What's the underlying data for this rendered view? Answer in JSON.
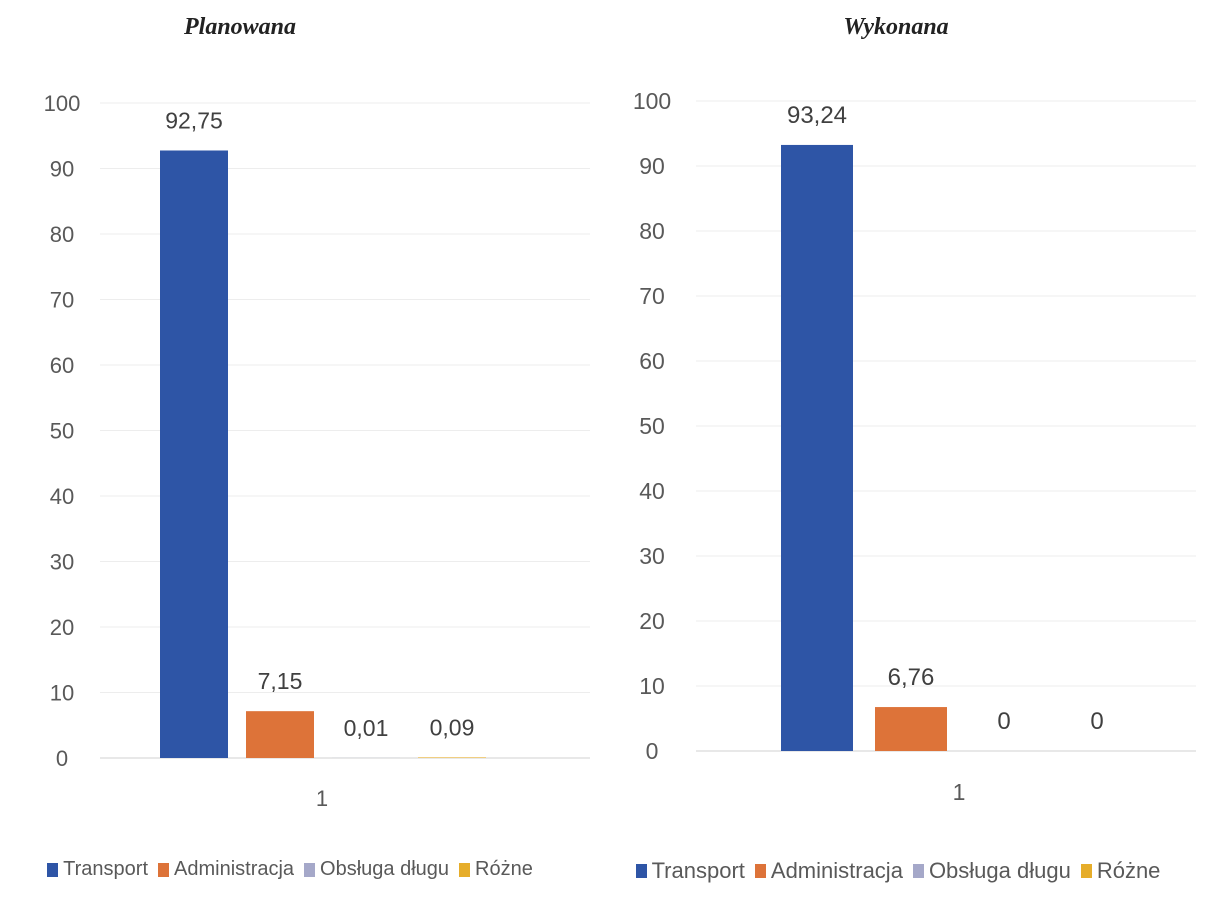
{
  "chart_data": [
    {
      "type": "bar",
      "title": "Planowana",
      "categories": [
        "1"
      ],
      "series": [
        {
          "name": "Transport",
          "values": [
            92.75
          ],
          "label": "92,75",
          "color": "#2e55a6"
        },
        {
          "name": "Administracja",
          "values": [
            7.15
          ],
          "label": "7,15",
          "color": "#dd7339"
        },
        {
          "name": "Obsługa długu",
          "values": [
            0.01
          ],
          "label": "0,01",
          "color": "#a5a8c9"
        },
        {
          "name": "Różne",
          "values": [
            0.09
          ],
          "label": "0,09",
          "color": "#e6ad2a"
        }
      ],
      "yticks": [
        "0",
        "10",
        "20",
        "30",
        "40",
        "50",
        "60",
        "70",
        "80",
        "90",
        "100"
      ],
      "ylim": [
        0,
        100
      ],
      "grid": true,
      "legend_position": "bottom"
    },
    {
      "type": "bar",
      "title": "Wykonana",
      "categories": [
        "1"
      ],
      "series": [
        {
          "name": "Transport",
          "values": [
            93.24
          ],
          "label": "93,24",
          "color": "#2e55a6"
        },
        {
          "name": "Administracja",
          "values": [
            6.76
          ],
          "label": "6,76",
          "color": "#dd7339"
        },
        {
          "name": "Obsługa długu",
          "values": [
            0
          ],
          "label": "0",
          "color": "#a5a8c9"
        },
        {
          "name": "Różne",
          "values": [
            0
          ],
          "label": "0",
          "color": "#e6ad2a"
        }
      ],
      "yticks": [
        "0",
        "10",
        "20",
        "30",
        "40",
        "50",
        "60",
        "70",
        "80",
        "90",
        "100"
      ],
      "ylim": [
        0,
        100
      ],
      "grid": true,
      "legend_position": "bottom"
    }
  ]
}
